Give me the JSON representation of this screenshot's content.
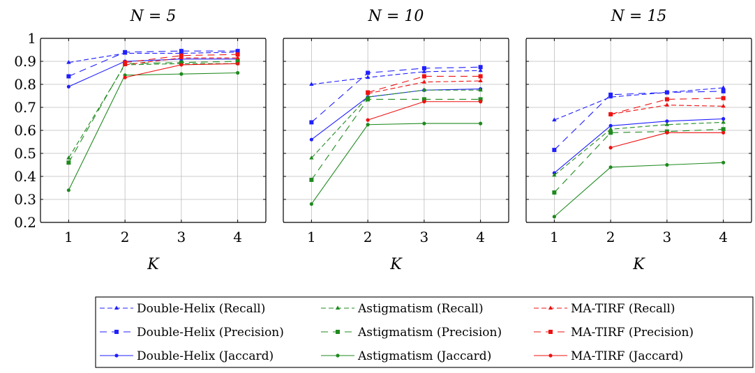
{
  "chart_data": [
    {
      "type": "line",
      "title": "N = 5",
      "xlabel": "K",
      "ylabel": "",
      "x": [
        1,
        2,
        3,
        4
      ],
      "xlim": [
        0.5,
        4.5
      ],
      "ylim": [
        0.2,
        1.0
      ],
      "yticks": [
        0.2,
        0.3,
        0.4,
        0.5,
        0.6,
        0.7,
        0.8,
        0.9,
        1.0
      ],
      "ytick_labels": [
        "0.2",
        "0.3",
        "0.4",
        "0.5",
        "0.6",
        "0.7",
        "0.8",
        "0.9",
        "1"
      ],
      "grid": true,
      "series": [
        {
          "name": "Double-Helix (Recall)",
          "values": [
            0.895,
            0.935,
            0.935,
            0.94
          ]
        },
        {
          "name": "Double-Helix (Precision)",
          "values": [
            0.835,
            0.94,
            0.945,
            0.945
          ]
        },
        {
          "name": "Double-Helix (Jaccard)",
          "values": [
            0.79,
            0.9,
            0.91,
            0.91
          ]
        },
        {
          "name": "Astigmatism (Recall)",
          "values": [
            0.48,
            0.885,
            0.89,
            0.89
          ]
        },
        {
          "name": "Astigmatism (Precision)",
          "values": [
            0.46,
            0.89,
            0.895,
            0.9
          ]
        },
        {
          "name": "Astigmatism (Jaccard)",
          "values": [
            0.34,
            0.84,
            0.845,
            0.85
          ]
        },
        {
          "name": "MA-TIRF (Recall)",
          "values": [
            null,
            0.885,
            0.915,
            0.915
          ]
        },
        {
          "name": "MA-TIRF (Precision)",
          "values": [
            null,
            0.895,
            0.925,
            0.93
          ]
        },
        {
          "name": "MA-TIRF (Jaccard)",
          "values": [
            null,
            0.83,
            0.885,
            0.89
          ]
        }
      ]
    },
    {
      "type": "line",
      "title": "N = 10",
      "xlabel": "K",
      "ylabel": "",
      "x": [
        1,
        2,
        3,
        4
      ],
      "xlim": [
        0.5,
        4.5
      ],
      "ylim": [
        0.2,
        1.0
      ],
      "grid": true,
      "series": [
        {
          "name": "Double-Helix (Recall)",
          "values": [
            0.8,
            0.83,
            0.855,
            0.86
          ]
        },
        {
          "name": "Double-Helix (Precision)",
          "values": [
            0.635,
            0.85,
            0.87,
            0.875
          ]
        },
        {
          "name": "Double-Helix (Jaccard)",
          "values": [
            0.56,
            0.745,
            0.775,
            0.78
          ]
        },
        {
          "name": "Astigmatism (Recall)",
          "values": [
            0.48,
            0.745,
            0.775,
            0.775
          ]
        },
        {
          "name": "Astigmatism (Precision)",
          "values": [
            0.385,
            0.735,
            0.735,
            0.735
          ]
        },
        {
          "name": "Astigmatism (Jaccard)",
          "values": [
            0.28,
            0.625,
            0.63,
            0.63
          ]
        },
        {
          "name": "MA-TIRF (Recall)",
          "values": [
            null,
            0.76,
            0.81,
            0.815
          ]
        },
        {
          "name": "MA-TIRF (Precision)",
          "values": [
            null,
            0.765,
            0.835,
            0.835
          ]
        },
        {
          "name": "MA-TIRF (Jaccard)",
          "values": [
            null,
            0.645,
            0.725,
            0.725
          ]
        }
      ]
    },
    {
      "type": "line",
      "title": "N = 15",
      "xlabel": "K",
      "ylabel": "",
      "x": [
        1,
        2,
        3,
        4
      ],
      "xlim": [
        0.5,
        4.5
      ],
      "ylim": [
        0.2,
        1.0
      ],
      "grid": true,
      "series": [
        {
          "name": "Double-Helix (Recall)",
          "values": [
            0.645,
            0.745,
            0.765,
            0.785
          ]
        },
        {
          "name": "Double-Helix (Precision)",
          "values": [
            0.515,
            0.755,
            0.765,
            0.77
          ]
        },
        {
          "name": "Double-Helix (Jaccard)",
          "values": [
            0.415,
            0.62,
            0.64,
            0.65
          ]
        },
        {
          "name": "Astigmatism (Recall)",
          "values": [
            0.405,
            0.605,
            0.625,
            0.635
          ]
        },
        {
          "name": "Astigmatism (Precision)",
          "values": [
            0.33,
            0.59,
            0.595,
            0.605
          ]
        },
        {
          "name": "Astigmatism (Jaccard)",
          "values": [
            0.225,
            0.44,
            0.45,
            0.46
          ]
        },
        {
          "name": "MA-TIRF (Recall)",
          "values": [
            null,
            0.67,
            0.71,
            0.705
          ]
        },
        {
          "name": "MA-TIRF (Precision)",
          "values": [
            null,
            0.67,
            0.735,
            0.74
          ]
        },
        {
          "name": "MA-TIRF (Jaccard)",
          "values": [
            null,
            0.525,
            0.59,
            0.59
          ]
        }
      ]
    }
  ],
  "legend": {
    "placement": "bottom",
    "entries": [
      {
        "label": "Double-Helix (Recall)",
        "color": "#1f1fff",
        "style": "dashed",
        "marker": "triangle"
      },
      {
        "label": "Astigmatism (Recall)",
        "color": "#1f8a1f",
        "style": "dashed",
        "marker": "triangle"
      },
      {
        "label": "MA-TIRF (Recall)",
        "color": "#ee1111",
        "style": "dashed",
        "marker": "triangle"
      },
      {
        "label": "Double-Helix (Precision)",
        "color": "#1f1fff",
        "style": "loose-dashed",
        "marker": "square"
      },
      {
        "label": "Astigmatism (Precision)",
        "color": "#1f8a1f",
        "style": "loose-dashed",
        "marker": "square"
      },
      {
        "label": "MA-TIRF (Precision)",
        "color": "#ee1111",
        "style": "loose-dashed",
        "marker": "square"
      },
      {
        "label": "Double-Helix (Jaccard)",
        "color": "#1f1fff",
        "style": "solid",
        "marker": "circle"
      },
      {
        "label": "Astigmatism (Jaccard)",
        "color": "#1f8a1f",
        "style": "solid",
        "marker": "circle"
      },
      {
        "label": "MA-TIRF (Jaccard)",
        "color": "#ee1111",
        "style": "solid",
        "marker": "circle"
      }
    ]
  },
  "colors": {
    "double_helix": "#1f1fff",
    "astigmatism": "#1f8a1f",
    "ma_tirf": "#ee1111",
    "grid": "#bdbdbd"
  }
}
